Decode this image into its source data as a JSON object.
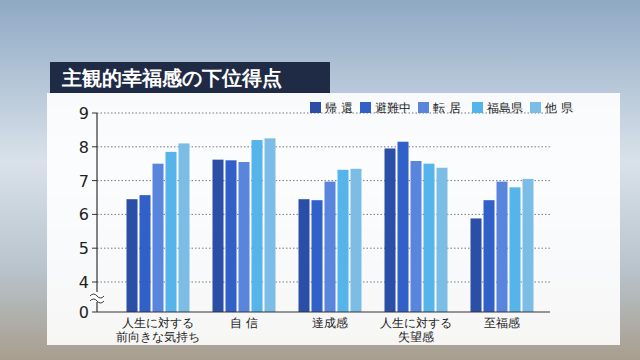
{
  "chart_data": {
    "type": "bar",
    "title": "主観的幸福感の下位得点",
    "categories": [
      "人生に対する\n前向きな気持ち",
      "自 信",
      "達成感",
      "人生に対する\n失望感",
      "至福感"
    ],
    "series": [
      {
        "name": "帰 還",
        "color": "#2b4fa6",
        "values": [
          6.45,
          7.62,
          6.45,
          7.95,
          5.88
        ]
      },
      {
        "name": "避難中",
        "color": "#3060c8",
        "values": [
          6.57,
          7.6,
          6.42,
          8.15,
          6.42
        ]
      },
      {
        "name": "転 居",
        "color": "#5a85dc",
        "values": [
          7.5,
          7.55,
          6.97,
          7.58,
          6.97
        ]
      },
      {
        "name": "福島県",
        "color": "#55b4ea",
        "values": [
          7.85,
          8.2,
          7.32,
          7.5,
          6.8
        ]
      },
      {
        "name": "他 県",
        "color": "#7cbde6",
        "values": [
          8.1,
          8.25,
          7.35,
          7.38,
          7.05
        ]
      }
    ],
    "ylim": [
      0,
      9
    ],
    "yticks": [
      0,
      4,
      5,
      6,
      7,
      8,
      9
    ],
    "grid": true,
    "legend": "top-right"
  }
}
